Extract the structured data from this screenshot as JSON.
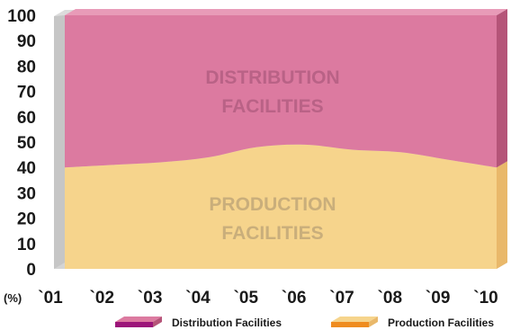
{
  "chart_data": {
    "type": "area",
    "stacked": true,
    "percent": true,
    "unit_label": "(%)",
    "categories": [
      "`01",
      "`02",
      "`03",
      "`04",
      "`05",
      "`06",
      "`07",
      "`08",
      "`09",
      "`10"
    ],
    "series": [
      {
        "name": "Production Facilities",
        "values": [
          40,
          41,
          42,
          44,
          48,
          49,
          47,
          46,
          43,
          40
        ],
        "color": "#f6d48c",
        "side_color": "#e9b86a",
        "legend_color": "#ef8c1f",
        "area_label": [
          "PRODUCTION",
          "FACILITIES"
        ],
        "label_color": "#c9ae7b"
      },
      {
        "name": "Distribution Facilities",
        "values": [
          60,
          59,
          58,
          56,
          52,
          51,
          53,
          54,
          57,
          60
        ],
        "color": "#dc7aa0",
        "side_color": "#b55478",
        "legend_color": "#9c1579",
        "area_label": [
          "DISTRIBUTION",
          "FACILITIES"
        ],
        "label_color": "#b96286"
      }
    ],
    "ylim": [
      0,
      100
    ],
    "yticks": [
      0,
      10,
      20,
      30,
      40,
      50,
      60,
      70,
      80,
      90,
      100
    ],
    "grid": false,
    "legend_position": "bottom-right"
  }
}
